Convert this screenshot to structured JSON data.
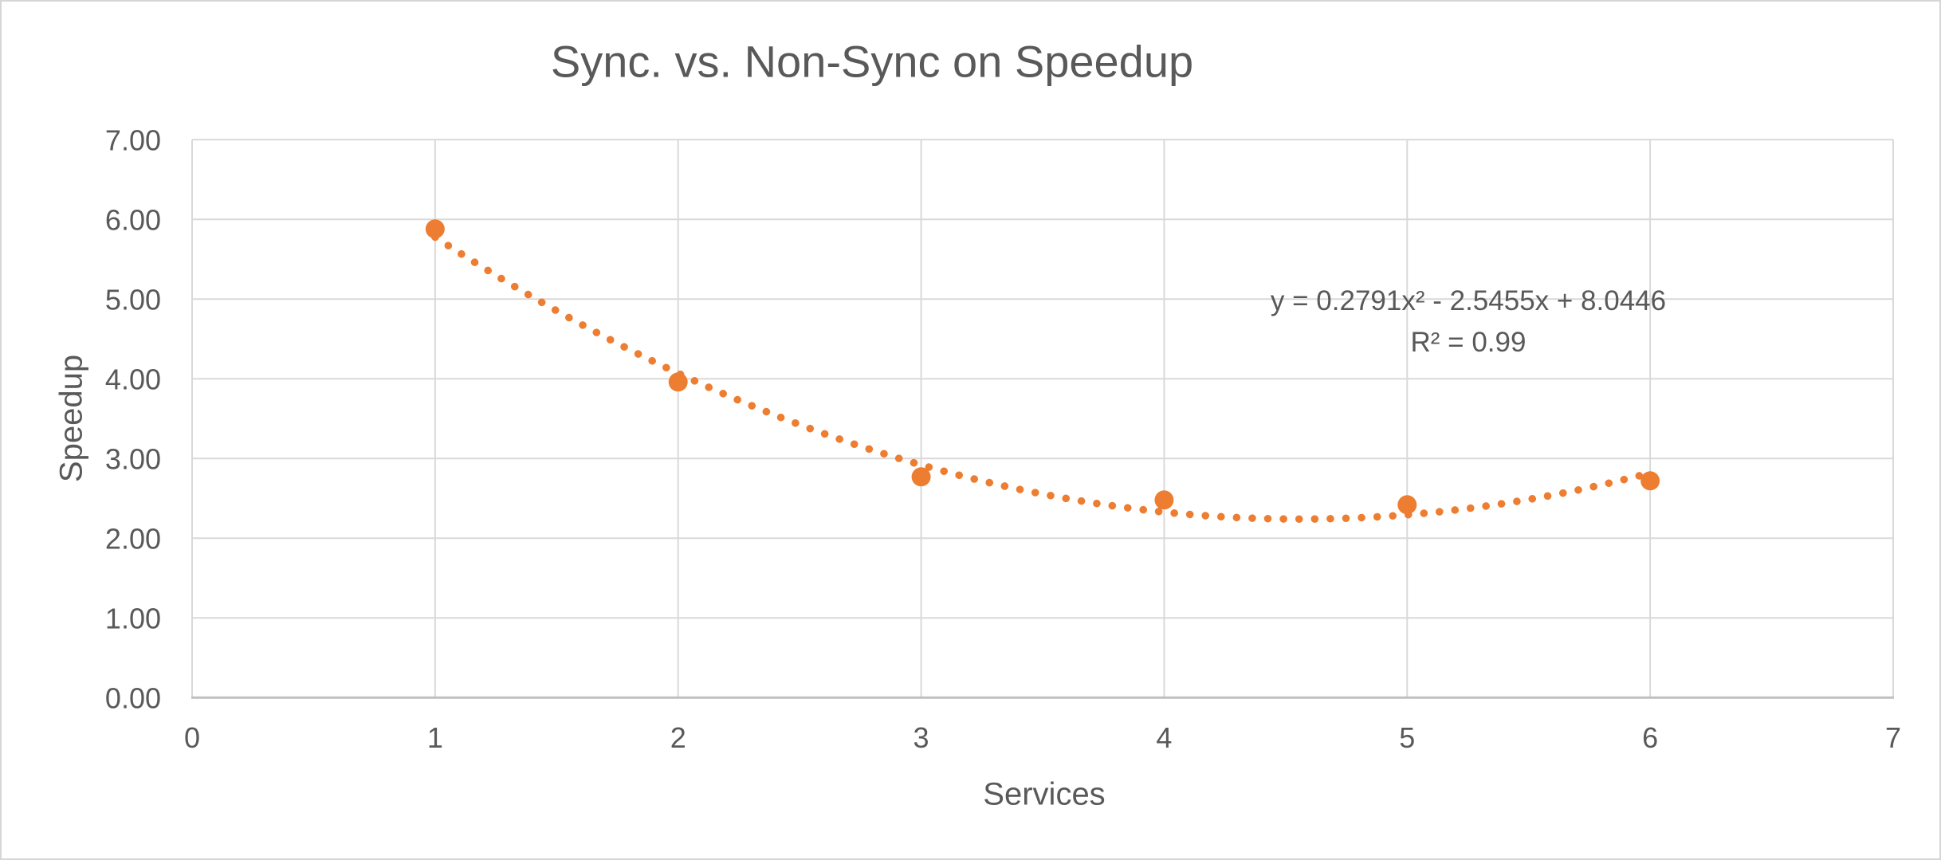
{
  "chart_data": {
    "type": "scatter",
    "title": "Sync. vs. Non-Sync on Speedup",
    "xlabel": "Services",
    "ylabel": "Speedup",
    "xlim": [
      0,
      7
    ],
    "ylim": [
      0,
      7
    ],
    "grid": true,
    "x_ticks": [
      "0",
      "1",
      "2",
      "3",
      "4",
      "5",
      "6",
      "7"
    ],
    "y_ticks": [
      "0.00",
      "1.00",
      "2.00",
      "3.00",
      "4.00",
      "5.00",
      "6.00",
      "7.00"
    ],
    "series": [
      {
        "name": "Speedup",
        "x": [
          1,
          2,
          3,
          4,
          5,
          6
        ],
        "y": [
          5.88,
          3.96,
          2.77,
          2.48,
          2.42,
          2.72
        ]
      }
    ],
    "trendline": {
      "type": "polynomial",
      "order": 2,
      "a": 0.2791,
      "b": -2.5455,
      "c": 8.0446,
      "x_range": [
        1,
        6
      ],
      "equation_text": "y = 0.2791x² - 2.5455x + 8.0446",
      "r_squared_text": "R² = 0.99",
      "r_squared": 0.99
    },
    "legend": "none",
    "colors": {
      "series": "#ED7D31",
      "text": "#595959",
      "gridline": "#D9D9D9",
      "axis_line": "#BFBFBF",
      "background": "#FFFFFF",
      "border": "#D6D6D6"
    }
  }
}
